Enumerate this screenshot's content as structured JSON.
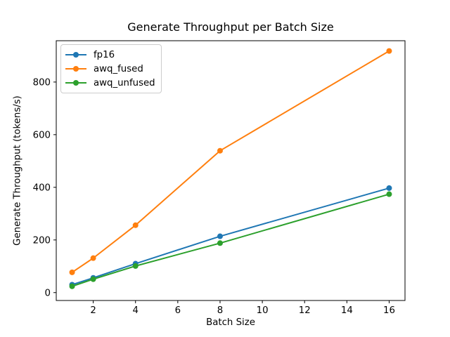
{
  "chart_data": {
    "type": "line",
    "title": "Generate Throughput per Batch Size",
    "xlabel": "Batch Size",
    "ylabel": "Generate Throughput (tokens/s)",
    "x": [
      1,
      2,
      4,
      8,
      16
    ],
    "series": [
      {
        "name": "fp16",
        "color": "#1f77b4",
        "values": [
          30,
          56,
          110,
          214,
          397
        ]
      },
      {
        "name": "awq_fused",
        "color": "#ff7f0e",
        "values": [
          77,
          131,
          256,
          539,
          918
        ]
      },
      {
        "name": "awq_unfused",
        "color": "#2ca02c",
        "values": [
          24,
          51,
          101,
          188,
          374
        ]
      }
    ],
    "x_ticks": [
      2,
      4,
      6,
      8,
      10,
      12,
      14,
      16
    ],
    "y_ticks": [
      0,
      200,
      400,
      600,
      800
    ],
    "xlim": [
      0.25,
      16.75
    ],
    "ylim": [
      -30,
      957
    ],
    "legend_position": "upper left",
    "grid": false,
    "marker": "circle",
    "axis_color": "#000000",
    "background": "#ffffff"
  }
}
